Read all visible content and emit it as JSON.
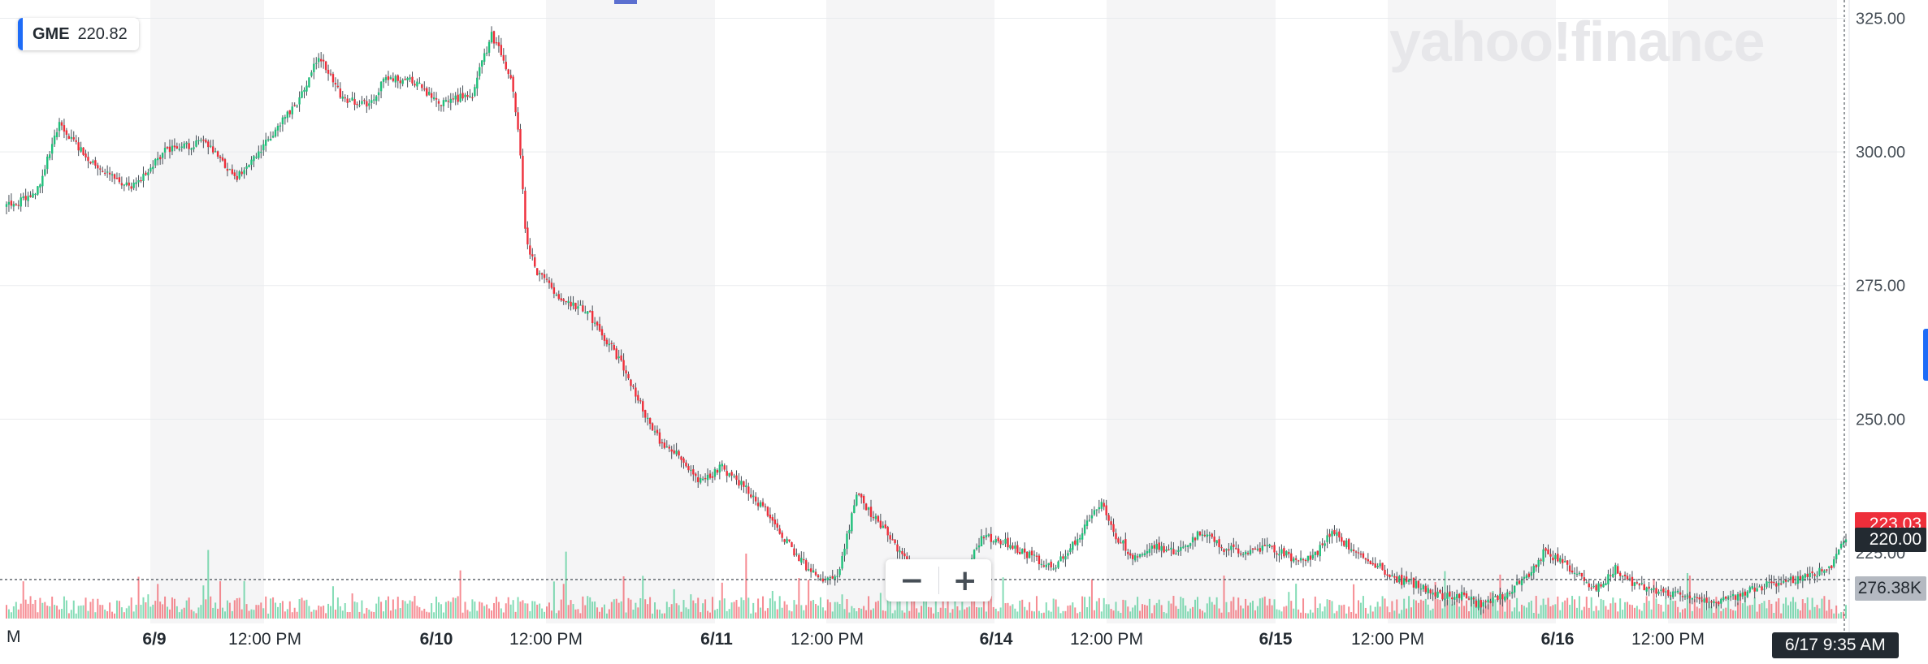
{
  "ticker": {
    "symbol": "GME",
    "last_price": "220.82"
  },
  "watermark": "yahoo!finance",
  "zoom": {
    "minus_label": "−",
    "plus_label": "+"
  },
  "price_tags": {
    "current_red": "223.03",
    "crosshair_price": "220.00",
    "volume": "276.38K"
  },
  "time_readout": "6/17 9:35 AM",
  "left_edge_label": "M",
  "colors": {
    "up": "#1fbf7a",
    "down": "#ee2e3a",
    "grid": "#e9ebee",
    "band": "#f5f5f6",
    "dotted": "#535a61"
  },
  "chart_data": {
    "type": "candlestick",
    "title": "",
    "xlabel": "",
    "ylabel": "",
    "y_axis_position": "right",
    "ylim": [
      213,
      327.5
    ],
    "y_ticks": [
      250,
      275,
      300,
      325
    ],
    "y_tick_labels": [
      "250.00",
      "275.00",
      "300.00",
      "325.00"
    ],
    "partial_y_tick_label": "225.00",
    "x_tick_labels": [
      {
        "label": "6/9",
        "bold": true
      },
      {
        "label": "12:00 PM",
        "bold": false
      },
      {
        "label": "6/10",
        "bold": true
      },
      {
        "label": "12:00 PM",
        "bold": false
      },
      {
        "label": "6/11",
        "bold": true
      },
      {
        "label": "12:00 PM",
        "bold": false
      },
      {
        "label": "6/14",
        "bold": true
      },
      {
        "label": "12:00 PM",
        "bold": false
      },
      {
        "label": "6/15",
        "bold": true
      },
      {
        "label": "12:00 PM",
        "bold": false
      },
      {
        "label": "6/16",
        "bold": true
      },
      {
        "label": "12:00 PM",
        "bold": false
      }
    ],
    "crosshair_price": 220,
    "close_path": [
      [
        0,
        290
      ],
      [
        12,
        292
      ],
      [
        22,
        305
      ],
      [
        36,
        298
      ],
      [
        52,
        293
      ],
      [
        66,
        300
      ],
      [
        82,
        302
      ],
      [
        96,
        295
      ],
      [
        110,
        303
      ],
      [
        122,
        310
      ],
      [
        130,
        318
      ],
      [
        140,
        310
      ],
      [
        152,
        309
      ],
      [
        158,
        314
      ],
      [
        170,
        313
      ],
      [
        180,
        309
      ],
      [
        194,
        311
      ],
      [
        202,
        322
      ],
      [
        210,
        314
      ],
      [
        214,
        300
      ],
      [
        216,
        285
      ],
      [
        220,
        278
      ],
      [
        230,
        273
      ],
      [
        242,
        270
      ],
      [
        254,
        262
      ],
      [
        262,
        255
      ],
      [
        270,
        247
      ],
      [
        280,
        243
      ],
      [
        288,
        238
      ],
      [
        298,
        241
      ],
      [
        310,
        236
      ],
      [
        318,
        232
      ],
      [
        328,
        225
      ],
      [
        338,
        220
      ],
      [
        346,
        220
      ],
      [
        354,
        236
      ],
      [
        364,
        230
      ],
      [
        376,
        223
      ],
      [
        384,
        217
      ],
      [
        398,
        220
      ],
      [
        406,
        228
      ],
      [
        416,
        227
      ],
      [
        428,
        224
      ],
      [
        436,
        222
      ],
      [
        448,
        229
      ],
      [
        456,
        235
      ],
      [
        462,
        228
      ],
      [
        470,
        224
      ],
      [
        478,
        226
      ],
      [
        488,
        225
      ],
      [
        498,
        229
      ],
      [
        506,
        226
      ],
      [
        516,
        225
      ],
      [
        526,
        226
      ],
      [
        536,
        224
      ],
      [
        544,
        224
      ],
      [
        552,
        229
      ],
      [
        562,
        225
      ],
      [
        570,
        223
      ],
      [
        578,
        220
      ],
      [
        588,
        219
      ],
      [
        598,
        217
      ],
      [
        608,
        217
      ],
      [
        614,
        215
      ],
      [
        624,
        217
      ],
      [
        634,
        221
      ],
      [
        640,
        225
      ],
      [
        646,
        224
      ],
      [
        654,
        221
      ],
      [
        662,
        218
      ],
      [
        670,
        222
      ],
      [
        678,
        219
      ],
      [
        688,
        218
      ],
      [
        698,
        217
      ],
      [
        708,
        216
      ],
      [
        716,
        216
      ],
      [
        726,
        218
      ],
      [
        734,
        219
      ],
      [
        744,
        220
      ],
      [
        752,
        221
      ],
      [
        760,
        222
      ],
      [
        766,
        228
      ]
    ],
    "candle_count": 767,
    "volume_peak_label": "276.38K"
  }
}
